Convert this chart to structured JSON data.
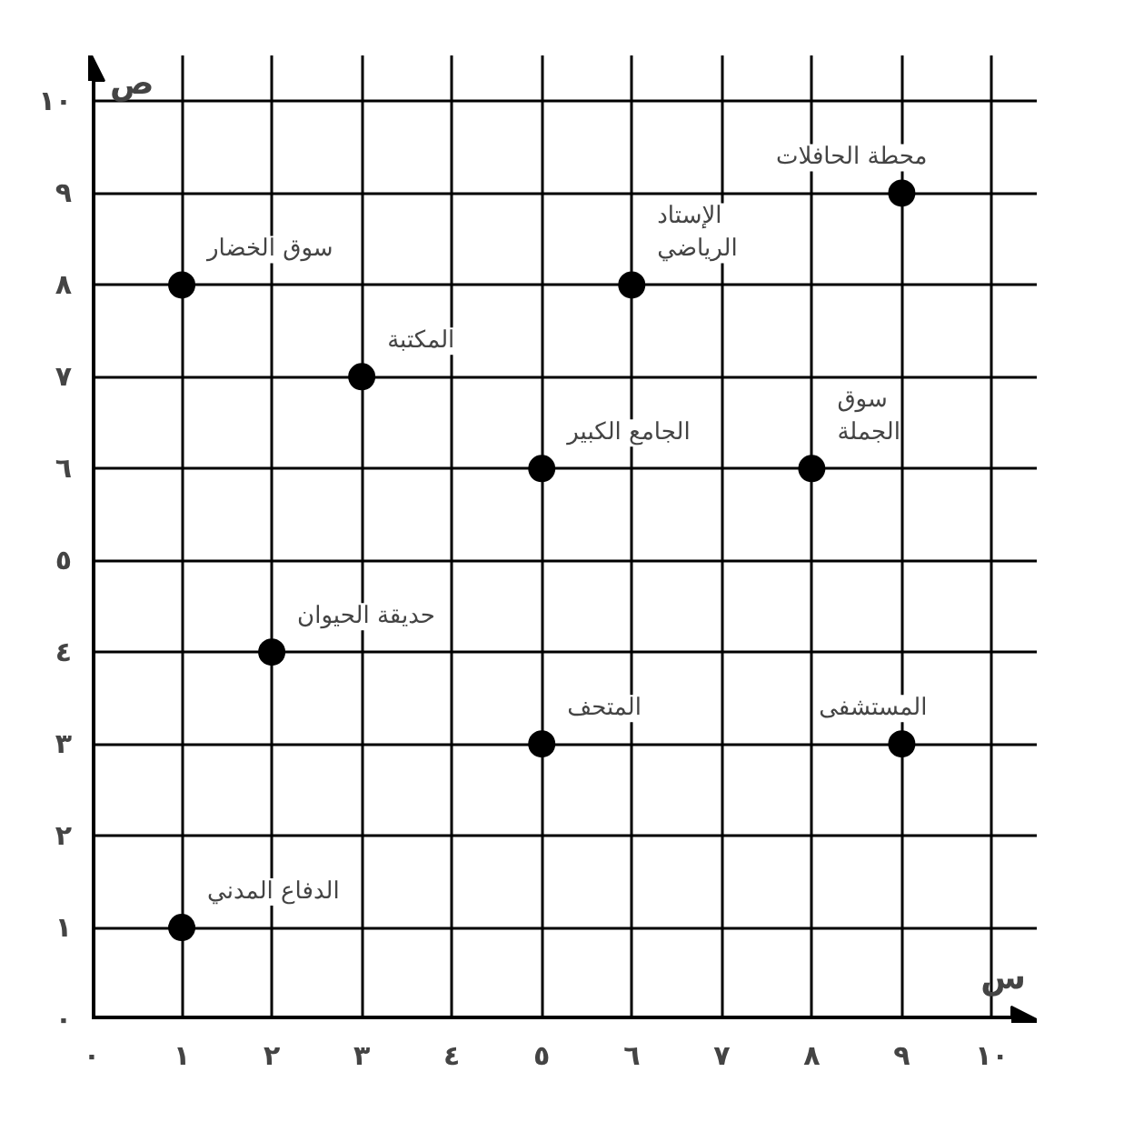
{
  "chart_data": {
    "type": "scatter",
    "xlabel": "س",
    "ylabel": "ص",
    "x": [
      1,
      3,
      6,
      9,
      5,
      8,
      2,
      5,
      9,
      1
    ],
    "values": [
      8,
      7,
      8,
      9,
      6,
      6,
      4,
      3,
      3,
      1
    ],
    "color": "#000000",
    "marker": "circle",
    "grid": true,
    "xlim": [
      0,
      10.5
    ],
    "ylim": [
      0,
      10.5
    ],
    "xticks": [
      {
        "value": 0,
        "label": "٠"
      },
      {
        "value": 1,
        "label": "١"
      },
      {
        "value": 2,
        "label": "٢"
      },
      {
        "value": 3,
        "label": "٣"
      },
      {
        "value": 4,
        "label": "٤"
      },
      {
        "value": 5,
        "label": "٥"
      },
      {
        "value": 6,
        "label": "٦"
      },
      {
        "value": 7,
        "label": "٧"
      },
      {
        "value": 8,
        "label": "٨"
      },
      {
        "value": 9,
        "label": "٩"
      },
      {
        "value": 10,
        "label": "١٠"
      }
    ],
    "yticks": [
      {
        "value": 0,
        "label": "٠"
      },
      {
        "value": 1,
        "label": "١"
      },
      {
        "value": 2,
        "label": "٢"
      },
      {
        "value": 3,
        "label": "٣"
      },
      {
        "value": 4,
        "label": "٤"
      },
      {
        "value": 5,
        "label": "٥"
      },
      {
        "value": 6,
        "label": "٦"
      },
      {
        "value": 7,
        "label": "٧"
      },
      {
        "value": 8,
        "label": "٨"
      },
      {
        "value": 9,
        "label": "٩"
      },
      {
        "value": 10,
        "label": "١٠"
      }
    ],
    "annotations": [
      {
        "text": "سوق الخضار",
        "x": 1,
        "y": 8
      },
      {
        "text": "المكتبة",
        "x": 3,
        "y": 7
      },
      {
        "text": "الإستاد\nالرياضي",
        "x": 6,
        "y": 8
      },
      {
        "text": "محطة الحافلات",
        "x": 9,
        "y": 9
      },
      {
        "text": "الجامع الكبير",
        "x": 5,
        "y": 6
      },
      {
        "text": "سوق\nالجملة",
        "x": 8,
        "y": 6
      },
      {
        "text": "حديقة الحيوان",
        "x": 2,
        "y": 4
      },
      {
        "text": "المتحف",
        "x": 5,
        "y": 3
      },
      {
        "text": "المستشفى",
        "x": 9,
        "y": 3
      },
      {
        "text": "الدفاع المدني",
        "x": 1,
        "y": 1
      }
    ]
  }
}
